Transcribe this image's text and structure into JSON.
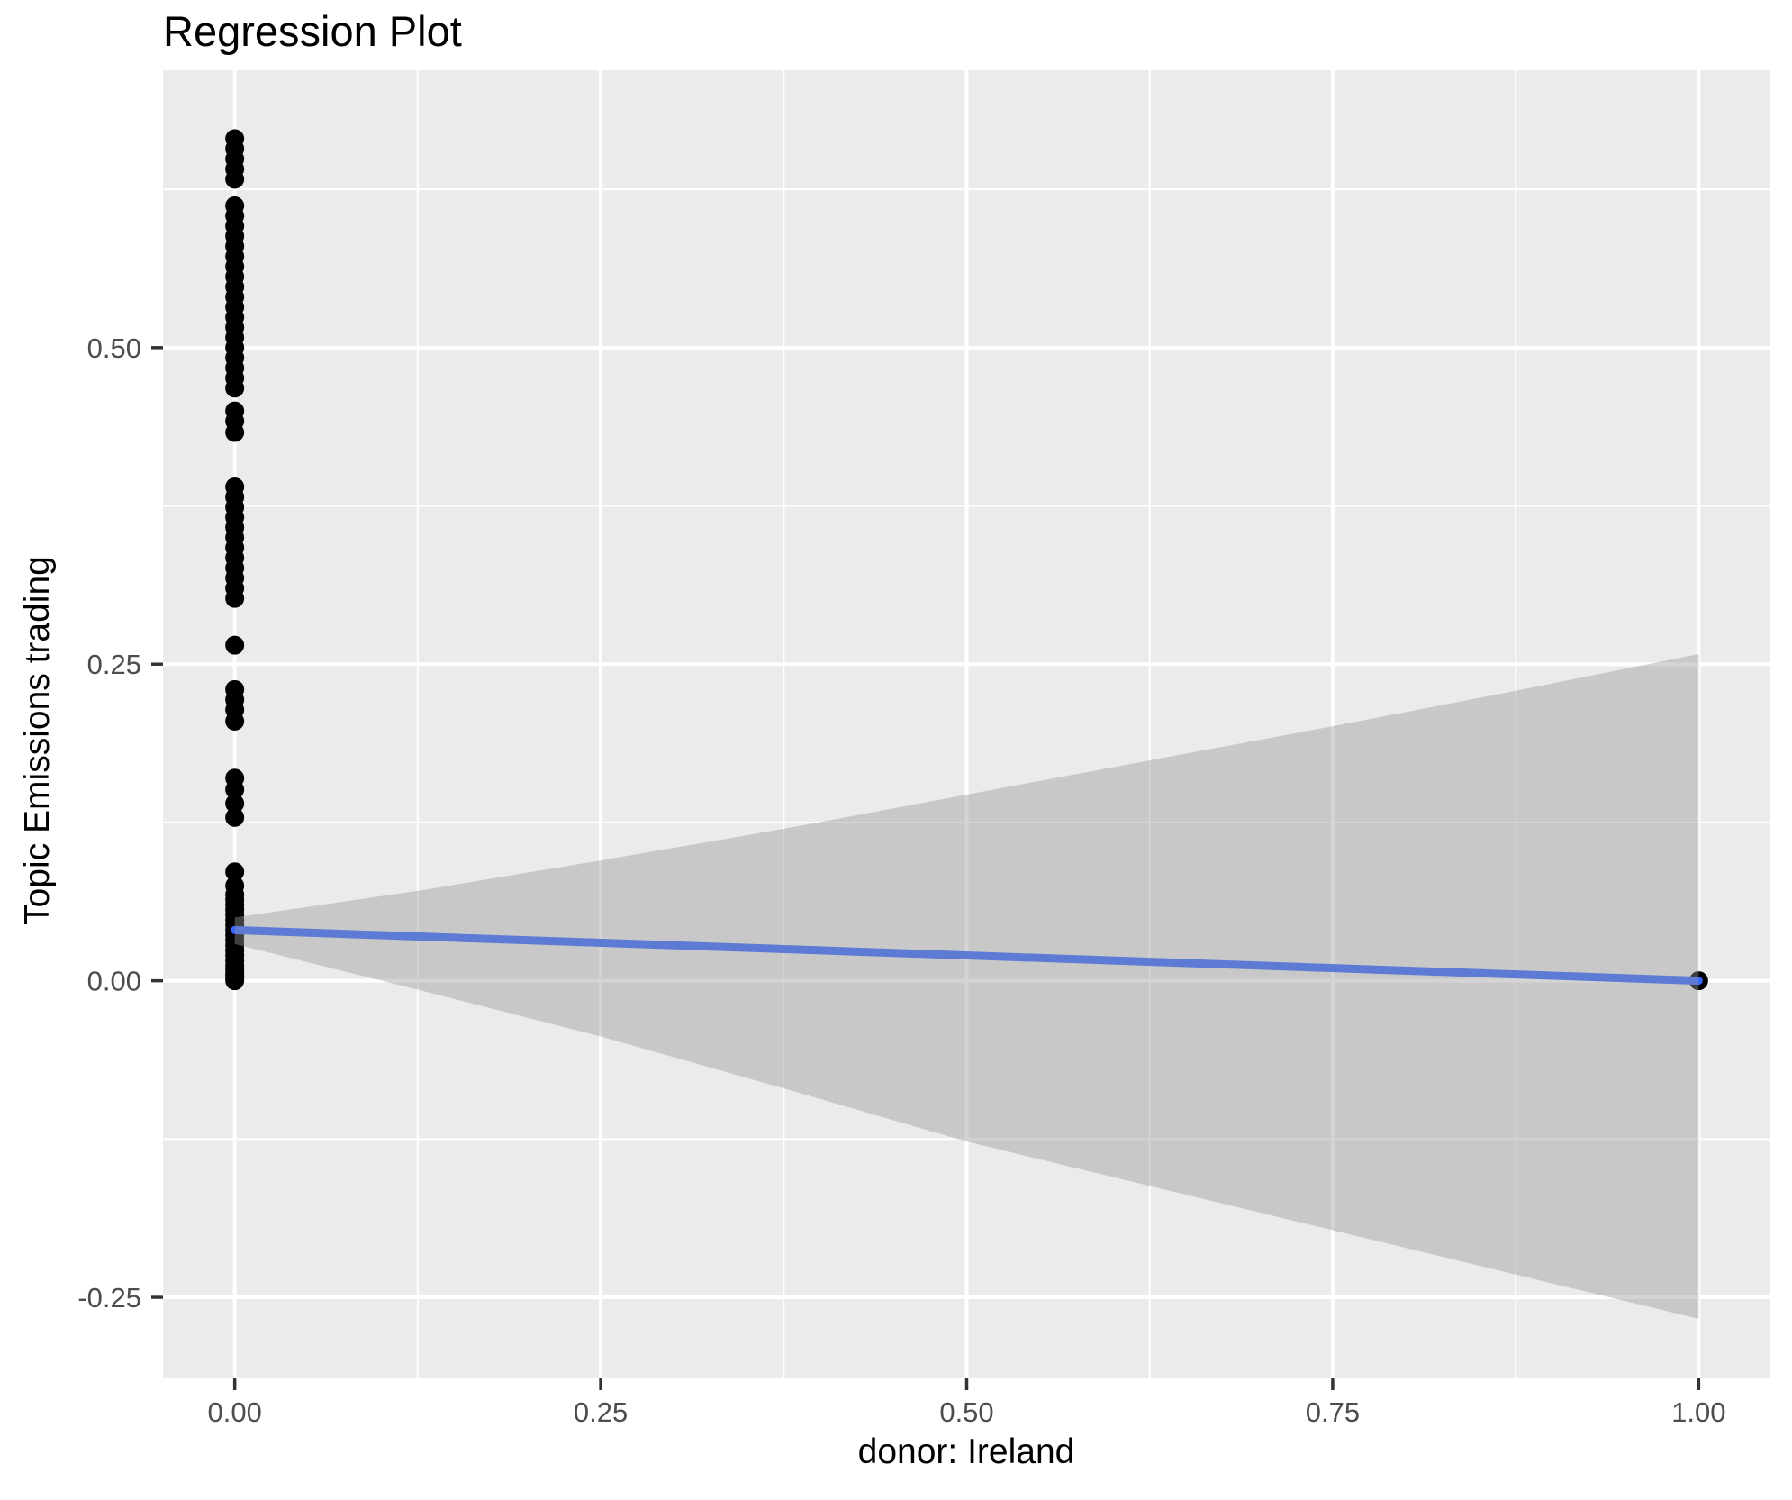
{
  "page_title": "Regression Plot",
  "chart_data": {
    "type": "scatter",
    "title": "Regression Plot",
    "xlabel": "donor: Ireland",
    "ylabel": "Topic Emissions trading",
    "xlim": [
      -0.049,
      1.049
    ],
    "ylim": [
      -0.314,
      0.719
    ],
    "grid": true,
    "legend": "none",
    "theme": "ggplot-gray",
    "x_ticks": {
      "values": [
        0,
        0.25,
        0.5,
        0.75,
        1.0
      ],
      "labels": [
        "0.00",
        "0.25",
        "0.50",
        "0.75",
        "1.00"
      ]
    },
    "y_ticks": {
      "values": [
        -0.25,
        0,
        0.25,
        0.5
      ],
      "labels": [
        "-0.25",
        "0.00",
        "0.25",
        "0.50"
      ]
    },
    "x_minor": [
      0.125,
      0.375,
      0.625,
      0.875
    ],
    "y_minor": [
      -0.125,
      0.125,
      0.375,
      0.625
    ],
    "style": {
      "panel_bg": "#EBEBEB",
      "grid_major": "#FFFFFF",
      "grid_minor": "#FFFFFF",
      "point_color": "#000000",
      "line_color": "#3366FF",
      "ribbon_color": "rgba(153,153,153,0.42)",
      "tick_mark_color": "#333333",
      "tick_label_color": "#4D4D4D"
    },
    "series": [
      {
        "name": "observations",
        "kind": "points",
        "points": [
          [
            0,
            0.665
          ],
          [
            0,
            0.657
          ],
          [
            0,
            0.649
          ],
          [
            0,
            0.641
          ],
          [
            0,
            0.633
          ],
          [
            0,
            0.612
          ],
          [
            0,
            0.604
          ],
          [
            0,
            0.596
          ],
          [
            0,
            0.588
          ],
          [
            0,
            0.58
          ],
          [
            0,
            0.572
          ],
          [
            0,
            0.564
          ],
          [
            0,
            0.556
          ],
          [
            0,
            0.548
          ],
          [
            0,
            0.54
          ],
          [
            0,
            0.532
          ],
          [
            0,
            0.524
          ],
          [
            0,
            0.516
          ],
          [
            0,
            0.508
          ],
          [
            0,
            0.5
          ],
          [
            0,
            0.492
          ],
          [
            0,
            0.484
          ],
          [
            0,
            0.476
          ],
          [
            0,
            0.468
          ],
          [
            0,
            0.45
          ],
          [
            0,
            0.442
          ],
          [
            0,
            0.433
          ],
          [
            0,
            0.39
          ],
          [
            0,
            0.382
          ],
          [
            0,
            0.374
          ],
          [
            0,
            0.366
          ],
          [
            0,
            0.358
          ],
          [
            0,
            0.35
          ],
          [
            0,
            0.342
          ],
          [
            0,
            0.334
          ],
          [
            0,
            0.326
          ],
          [
            0,
            0.318
          ],
          [
            0,
            0.31
          ],
          [
            0,
            0.302
          ],
          [
            0,
            0.265
          ],
          [
            0,
            0.23
          ],
          [
            0,
            0.222
          ],
          [
            0,
            0.214
          ],
          [
            0,
            0.205
          ],
          [
            0,
            0.16
          ],
          [
            0,
            0.151
          ],
          [
            0,
            0.14
          ],
          [
            0,
            0.129
          ],
          [
            0,
            0.086
          ],
          [
            0,
            0.075
          ],
          [
            0,
            0.068
          ],
          [
            0,
            0.064
          ],
          [
            0,
            0.06
          ],
          [
            0,
            0.056
          ],
          [
            0,
            0.052
          ],
          [
            0,
            0.048
          ],
          [
            0,
            0.044
          ],
          [
            0,
            0.04
          ],
          [
            0,
            0.036
          ],
          [
            0,
            0.032
          ],
          [
            0,
            0.028
          ],
          [
            0,
            0.024
          ],
          [
            0,
            0.02
          ],
          [
            0,
            0.016
          ],
          [
            0,
            0.012
          ],
          [
            0,
            0.009
          ],
          [
            0,
            0.006
          ],
          [
            0,
            0.004
          ],
          [
            0,
            0.002
          ],
          [
            0,
            0.0
          ],
          [
            1,
            0.0
          ]
        ]
      },
      {
        "name": "regression-fit",
        "kind": "line",
        "points": [
          [
            0,
            0.04
          ],
          [
            1,
            0.0
          ]
        ]
      },
      {
        "name": "confidence-band",
        "kind": "ribbon",
        "points": [
          {
            "x": 0.0,
            "lo": 0.029,
            "hi": 0.05
          },
          {
            "x": 0.125,
            "lo": -0.007,
            "hi": 0.071
          },
          {
            "x": 0.25,
            "lo": -0.044,
            "hi": 0.095
          },
          {
            "x": 0.375,
            "lo": -0.085,
            "hi": 0.12
          },
          {
            "x": 0.5,
            "lo": -0.127,
            "hi": 0.147
          },
          {
            "x": 0.625,
            "lo": -0.162,
            "hi": 0.174
          },
          {
            "x": 0.75,
            "lo": -0.197,
            "hi": 0.201
          },
          {
            "x": 0.875,
            "lo": -0.232,
            "hi": 0.229
          },
          {
            "x": 1.0,
            "lo": -0.267,
            "hi": 0.258
          }
        ]
      }
    ]
  }
}
